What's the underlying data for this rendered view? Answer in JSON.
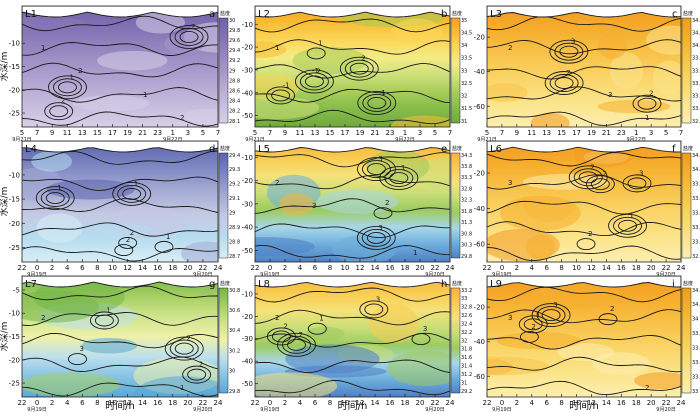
{
  "figure": {
    "x_title": "时间/h",
    "y_title": "水深/m",
    "cbar_title": "盐度"
  },
  "colors": {
    "purple": [
      "#6f5fa8",
      "#8a7ab9",
      "#a596c9",
      "#bfb4d9",
      "#d6d0e8"
    ],
    "bluepurple": [
      "#5b63ad",
      "#7d86c2",
      "#a2a9d3",
      "#c4c8e3",
      "#b7dcef",
      "#d8eef7"
    ],
    "greenorange": [
      "#f4a21c",
      "#f8bd35",
      "#fbd758",
      "#f3ec86",
      "#cde07a",
      "#a6cc59",
      "#84bb48",
      "#71a93e"
    ],
    "yellow": [
      "#f29a1f",
      "#f6ae2e",
      "#f8c34a",
      "#fad568",
      "#fbe48a",
      "#fdeeb0"
    ],
    "bluegreen": [
      "#74b648",
      "#a5cf63",
      "#cfe48c",
      "#eef1a8",
      "#bde0ee",
      "#87c3e4",
      "#5aa8d9"
    ],
    "greenblue": [
      "#f6b23a",
      "#f9cc52",
      "#f5e27a",
      "#c9de79",
      "#9ccb5f",
      "#a7d7e9",
      "#6eaedc",
      "#4f7fc4"
    ]
  },
  "chart_data": [
    {
      "type": "heatmap",
      "panel": "L1",
      "letter": "a",
      "x_ticks": [
        "5",
        "7",
        "9",
        "11",
        "13",
        "15",
        "17",
        "19",
        "21",
        "23",
        "1",
        "3",
        "5",
        "7"
      ],
      "dates": [
        "9月21日",
        "9月22日"
      ],
      "y_ticks": [
        "-10",
        "-15",
        "-20",
        "-25"
      ],
      "ylim": [
        -28,
        -2
      ],
      "cbar_ticks": [
        "30",
        "29.8",
        "29.6",
        "29.4",
        "29.2",
        "29",
        "28.8",
        "28.6",
        "28.4",
        "28.2",
        "28.1"
      ],
      "palette": "purple",
      "contour_labels": [
        "1",
        "2",
        "2",
        "1",
        "2",
        "1",
        "2"
      ]
    },
    {
      "type": "heatmap",
      "panel": "L2",
      "letter": "b",
      "x_ticks": [
        "5",
        "7",
        "9",
        "11",
        "13",
        "15",
        "17",
        "19",
        "21",
        "23",
        "1",
        "3",
        "5",
        "7"
      ],
      "dates": [
        "9月21日",
        "9月22日"
      ],
      "y_ticks": [
        "-10",
        "-20",
        "-30",
        "-40",
        "-50"
      ],
      "ylim": [
        -55,
        -2
      ],
      "cbar_ticks": [
        "35",
        "34.5",
        "34",
        "33.5",
        "33",
        "32.5",
        "32",
        "31.5",
        "31"
      ],
      "palette": "greenorange",
      "contour_labels": [
        "-1",
        "2",
        "-1",
        "1",
        "2",
        "1",
        "-1"
      ]
    },
    {
      "type": "heatmap",
      "panel": "L3",
      "letter": "c",
      "x_ticks": [
        "5",
        "7",
        "9",
        "11",
        "13",
        "15",
        "17",
        "19",
        "21",
        "23",
        "1",
        "3",
        "5",
        "7"
      ],
      "dates": [
        "9月21日",
        "9月22日"
      ],
      "y_ticks": [
        "-20",
        "-40",
        "-60"
      ],
      "ylim": [
        -72,
        -2
      ],
      "cbar_ticks": [
        "34.5",
        "34.3",
        "34.1",
        "33.9",
        "33.7",
        "33.5",
        "33.3",
        "33.1",
        "32.9"
      ],
      "palette": "yellow",
      "contour_labels": [
        "2",
        "3",
        "2",
        "3",
        "1",
        "2"
      ]
    },
    {
      "type": "heatmap",
      "panel": "L4",
      "letter": "d",
      "x_ticks": [
        "22",
        "0",
        "2",
        "4",
        "6",
        "8",
        "10",
        "12",
        "14",
        "16",
        "18",
        "20",
        "22",
        "24"
      ],
      "dates": [
        "9月19日",
        "9月20日"
      ],
      "y_ticks": [
        "-10",
        "-15",
        "-20",
        "-25"
      ],
      "ylim": [
        -28,
        -3
      ],
      "cbar_ticks": [
        "29.4",
        "29.3",
        "29.2",
        "29.1",
        "29",
        "28.9",
        "28.8",
        "28.7"
      ],
      "palette": "bluepurple",
      "contour_labels": [
        "1",
        "2",
        "1",
        "2",
        "1"
      ]
    },
    {
      "type": "heatmap",
      "panel": "L5",
      "letter": "e",
      "x_ticks": [
        "22",
        "0",
        "2",
        "4",
        "6",
        "8",
        "10",
        "12",
        "14",
        "16",
        "18",
        "20",
        "22",
        "24"
      ],
      "dates": [
        "9月19日",
        "9月20日"
      ],
      "y_ticks": [
        "-10",
        "-20",
        "-30",
        "-40",
        "-50"
      ],
      "ylim": [
        -55,
        -3
      ],
      "cbar_ticks": [
        "34.3",
        "33.8",
        "33.3",
        "32.8",
        "32.3",
        "31.8",
        "31.3",
        "30.8",
        "30.3",
        "29.8"
      ],
      "palette": "greenblue",
      "contour_labels": [
        "3",
        "2",
        "1",
        "3",
        "1",
        "2",
        "3"
      ]
    },
    {
      "type": "heatmap",
      "panel": "L6",
      "letter": "f",
      "x_ticks": [
        "22",
        "0",
        "2",
        "4",
        "6",
        "8",
        "10",
        "12",
        "14",
        "16",
        "18",
        "20",
        "22",
        "24"
      ],
      "dates": [
        "9月19日",
        "9月20日"
      ],
      "y_ticks": [
        "-20",
        "-40",
        "-60"
      ],
      "ylim": [
        -70,
        -2
      ],
      "cbar_ticks": [
        "34.3",
        "34.1",
        "33.9",
        "33.7",
        "33.5",
        "33.3",
        "33.1",
        "32.9"
      ],
      "palette": "yellow",
      "contour_labels": [
        "2",
        "3",
        "2",
        "1",
        "2",
        "3"
      ]
    },
    {
      "type": "heatmap",
      "panel": "L7",
      "letter": "g",
      "x_ticks": [
        "22",
        "0",
        "2",
        "4",
        "6",
        "8",
        "10",
        "12",
        "14",
        "16",
        "18",
        "20",
        "22",
        "24"
      ],
      "dates": [
        "9月19日",
        "9月20日"
      ],
      "y_ticks": [
        "-5",
        "-10",
        "-15",
        "-20",
        "-25"
      ],
      "ylim": [
        -28,
        -2
      ],
      "cbar_ticks": [
        "30.8",
        "30.6",
        "30.4",
        "30.2",
        "30",
        "29.8"
      ],
      "palette": "bluegreen",
      "contour_labels": [
        "1",
        "2",
        "3",
        "2",
        "1",
        "2"
      ]
    },
    {
      "type": "heatmap",
      "panel": "L8",
      "letter": "h",
      "x_ticks": [
        "22",
        "0",
        "2",
        "4",
        "6",
        "8",
        "10",
        "12",
        "14",
        "16",
        "18",
        "20",
        "22",
        "24"
      ],
      "dates": [
        "9月19日",
        "9月20日"
      ],
      "y_ticks": [
        "-10",
        "-20",
        "-30",
        "-40",
        "-50"
      ],
      "ylim": [
        -56,
        -2
      ],
      "cbar_ticks": [
        "33.2",
        "33",
        "32.8",
        "32.6",
        "32.4",
        "32.2",
        "32",
        "31.8",
        "31.6",
        "31.4",
        "31.2",
        "31",
        "29.2"
      ],
      "palette": "greenblue",
      "contour_labels": [
        "1",
        "2",
        "3",
        "2",
        "3",
        "2"
      ]
    },
    {
      "type": "heatmap",
      "panel": "L9",
      "letter": "i",
      "x_ticks": [
        "22",
        "0",
        "2",
        "4",
        "6",
        "8",
        "10",
        "12",
        "14",
        "16",
        "18",
        "20",
        "22",
        "24"
      ],
      "dates": [
        "9月19日",
        "9月20日"
      ],
      "y_ticks": [
        "-20",
        "-40",
        "-60"
      ],
      "ylim": [
        -72,
        -2
      ],
      "cbar_ticks": [
        "34.4",
        "34.2",
        "34",
        "33.8",
        "33.6",
        "33.4",
        "33.2",
        "33"
      ],
      "palette": "yellow",
      "contour_labels": [
        "2",
        "3",
        "2",
        "3",
        "2",
        "3"
      ]
    }
  ]
}
